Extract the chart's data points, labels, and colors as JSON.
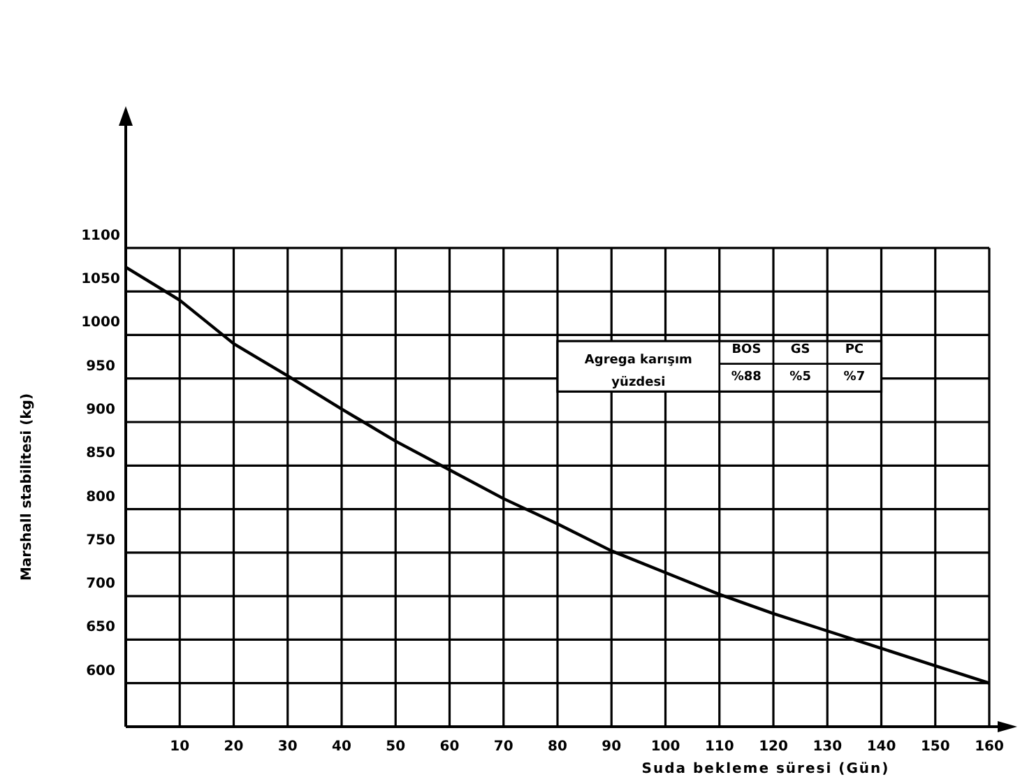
{
  "chart_data": {
    "type": "line",
    "xlabel": "Suda bekleme süresi (Gün)",
    "ylabel": "Marshall stabilitesi (kg)",
    "x": [
      0,
      10,
      20,
      30,
      40,
      50,
      60,
      70,
      80,
      90,
      100,
      110,
      120,
      130,
      140,
      150,
      160
    ],
    "series": [
      {
        "color": "#000000",
        "values": [
          1078,
          1040,
          990,
          953,
          915,
          878,
          845,
          812,
          783,
          752,
          727,
          702,
          680,
          660,
          640,
          620,
          600
        ]
      }
    ],
    "xlim": [
      0,
      160
    ],
    "xticks": [
      10,
      20,
      30,
      40,
      50,
      60,
      70,
      80,
      90,
      100,
      110,
      120,
      130,
      140,
      150,
      160
    ],
    "ylim": [
      550,
      1250
    ],
    "yticks": [
      600,
      650,
      700,
      750,
      800,
      850,
      900,
      950,
      1000,
      1050,
      1100
    ],
    "grid": true,
    "marker": "none",
    "line_style": "solid",
    "annotations": [
      "Agrega karışım yüzdesi",
      "BOS",
      "GS",
      "PC",
      "%88",
      "%5",
      "%7"
    ]
  }
}
